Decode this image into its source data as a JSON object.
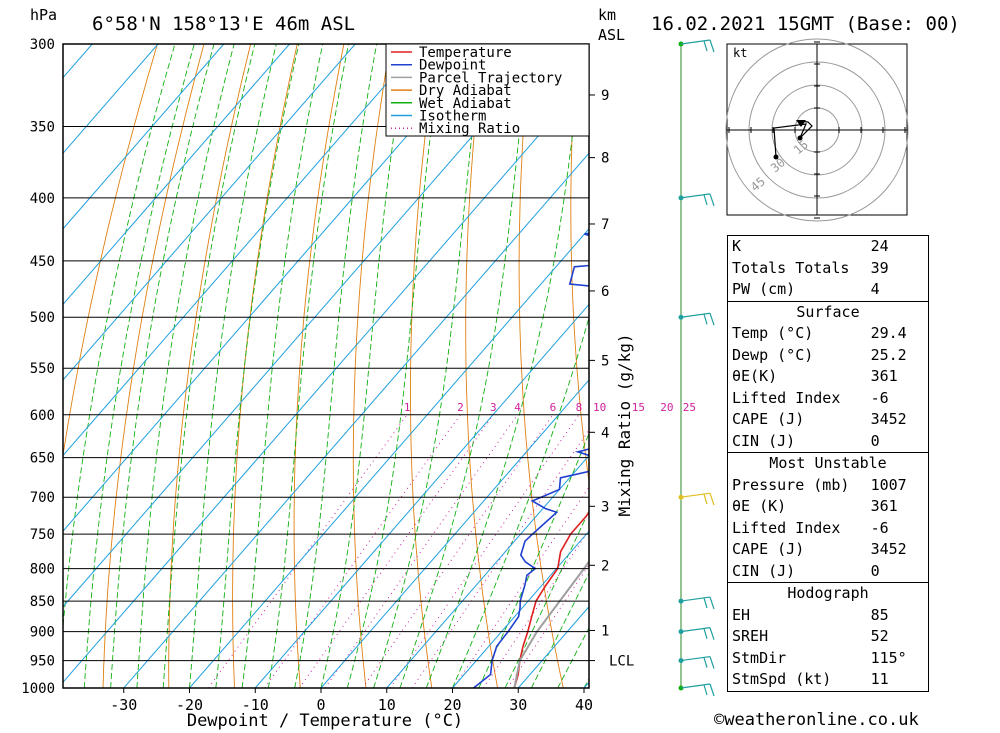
{
  "header": {
    "location": "6°58'N  158°13'E  46m  ASL",
    "datetime": "16.02.2021  15GMT  (Base: 00)",
    "left_unit": "hPa",
    "right_unit_top": "km",
    "right_unit_bottom": "ASL"
  },
  "chart_data": {
    "type": "line",
    "title": "",
    "xlabel": "Dewpoint / Temperature (°C)",
    "ylabel": "hPa",
    "y2label": "Mixing Ratio (g/kg)",
    "xlim": [
      -40,
      40
    ],
    "ylim": [
      1000,
      300
    ],
    "x_ticks": [
      "-30",
      "-20",
      "-10",
      "0",
      "10",
      "20",
      "30",
      "40"
    ],
    "pressure_levels": [
      300,
      350,
      400,
      450,
      500,
      550,
      600,
      650,
      700,
      750,
      800,
      850,
      900,
      950,
      1000
    ],
    "height_km": [
      {
        "label": "9",
        "p": 330
      },
      {
        "label": "8",
        "p": 371
      },
      {
        "label": "7",
        "p": 420
      },
      {
        "label": "6",
        "p": 476
      },
      {
        "label": "5",
        "p": 542
      },
      {
        "label": "4",
        "p": 620
      },
      {
        "label": "3",
        "p": 712
      },
      {
        "label": "2",
        "p": 795
      },
      {
        "label": "1",
        "p": 898
      },
      {
        "label": "LCL",
        "p": 950
      }
    ],
    "mixing_ratio_labels": [
      "1",
      "2",
      "3",
      "4",
      "6",
      "8",
      "10",
      "15",
      "20",
      "25"
    ],
    "legend": {
      "placement": "top-right",
      "items": [
        {
          "name": "Temperature",
          "color": "#e02020",
          "style": "solid"
        },
        {
          "name": "Dewpoint",
          "color": "#2040d0",
          "style": "solid"
        },
        {
          "name": "Parcel Trajectory",
          "color": "#a0a0a0",
          "style": "solid"
        },
        {
          "name": "Dry Adiabat",
          "color": "#e08010",
          "style": "solid"
        },
        {
          "name": "Wet Adiabat",
          "color": "#10b010",
          "style": "solid"
        },
        {
          "name": "Isotherm",
          "color": "#20a0e0",
          "style": "solid"
        },
        {
          "name": "Mixing Ratio",
          "color": "#d020a0",
          "style": "dotted"
        }
      ]
    },
    "series": [
      {
        "name": "Temperature",
        "points": [
          [
            29.4,
            1000
          ],
          [
            28.2,
            975
          ],
          [
            26.6,
            950
          ],
          [
            25.2,
            925
          ],
          [
            24.0,
            900
          ],
          [
            22.6,
            875
          ],
          [
            21.2,
            850
          ],
          [
            20.6,
            825
          ],
          [
            20.2,
            800
          ],
          [
            18.4,
            775
          ],
          [
            17.6,
            750
          ],
          [
            17.6,
            725
          ],
          [
            17.0,
            700
          ],
          [
            16.8,
            675
          ],
          [
            17.8,
            660
          ],
          [
            19.6,
            630
          ],
          [
            18.0,
            620
          ],
          [
            17.2,
            600
          ],
          [
            19.4,
            580
          ],
          [
            19.6,
            560
          ],
          [
            19.8,
            540
          ],
          [
            18.6,
            520
          ],
          [
            16.2,
            500
          ],
          [
            15.6,
            480
          ],
          [
            16.8,
            460
          ],
          [
            16.6,
            440
          ],
          [
            16.2,
            420
          ],
          [
            15.4,
            400
          ],
          [
            13.2,
            380
          ],
          [
            11.6,
            365
          ],
          [
            9.8,
            350
          ],
          [
            8.8,
            330
          ],
          [
            9.4,
            310
          ],
          [
            9.0,
            300
          ]
        ]
      },
      {
        "name": "Dewpoint",
        "points": [
          [
            23.2,
            1000
          ],
          [
            24.0,
            975
          ],
          [
            22.4,
            950
          ],
          [
            21.2,
            925
          ],
          [
            21.0,
            900
          ],
          [
            20.6,
            875
          ],
          [
            19.6,
            860
          ],
          [
            18.8,
            850
          ],
          [
            17.4,
            825
          ],
          [
            16.4,
            810
          ],
          [
            16.8,
            800
          ],
          [
            14.4,
            790
          ],
          [
            12.8,
            780
          ],
          [
            11.6,
            760
          ],
          [
            11.8,
            750
          ],
          [
            12.6,
            720
          ],
          [
            10.4,
            715
          ],
          [
            7.4,
            705
          ],
          [
            10.0,
            690
          ],
          [
            8.6,
            675
          ],
          [
            13.0,
            665
          ],
          [
            13.8,
            655
          ],
          [
            7.8,
            643
          ],
          [
            15.2,
            625
          ],
          [
            11.8,
            605
          ],
          [
            10.2,
            595
          ],
          [
            9.2,
            575
          ],
          [
            7.2,
            560
          ],
          [
            3.2,
            540
          ],
          [
            3.4,
            525
          ],
          [
            2.0,
            518
          ],
          [
            5.6,
            505
          ],
          [
            4.0,
            495
          ],
          [
            6.2,
            488
          ],
          [
            4.2,
            480
          ],
          [
            -15.6,
            470
          ],
          [
            -17.2,
            455
          ],
          [
            -4.2,
            448
          ],
          [
            -20.0,
            428
          ],
          [
            -7.6,
            415
          ],
          [
            -11.0,
            400
          ],
          [
            -19.2,
            378
          ],
          [
            -7.6,
            360
          ],
          [
            -11.0,
            345
          ],
          [
            -9.6,
            330
          ],
          [
            -8.0,
            310
          ],
          [
            -9.2,
            303
          ],
          [
            -8.6,
            300
          ]
        ]
      },
      {
        "name": "Parcel Trajectory",
        "points": [
          [
            29.4,
            1000
          ],
          [
            26.6,
            950
          ],
          [
            25.4,
            900
          ],
          [
            24.8,
            850
          ],
          [
            24.2,
            800
          ],
          [
            23.4,
            750
          ],
          [
            22.4,
            700
          ],
          [
            21.4,
            650
          ],
          [
            20.2,
            600
          ],
          [
            18.6,
            550
          ],
          [
            16.4,
            500
          ],
          [
            13.6,
            450
          ],
          [
            10.0,
            400
          ],
          [
            5.6,
            350
          ],
          [
            0.0,
            300
          ]
        ]
      }
    ],
    "wind_barbs_p": [
      1000,
      950,
      900,
      850,
      700,
      500,
      400,
      300
    ],
    "hodograph": {
      "unit": "kt",
      "ring_labels": [
        "15",
        "30",
        "45"
      ]
    }
  },
  "stats": {
    "block1": [
      {
        "k": "K",
        "v": "24"
      },
      {
        "k": "Totals Totals",
        "v": "39"
      },
      {
        "k": "PW (cm)",
        "v": "4"
      }
    ],
    "surface_title": "Surface",
    "surface": [
      {
        "k": "Temp (°C)",
        "v": "29.4"
      },
      {
        "k": "Dewp (°C)",
        "v": "25.2"
      },
      {
        "k": "θE(K)",
        "v": "361"
      },
      {
        "k": "Lifted Index",
        "v": "-6"
      },
      {
        "k": "CAPE (J)",
        "v": "3452"
      },
      {
        "k": "CIN (J)",
        "v": "0"
      }
    ],
    "mu_title": "Most Unstable",
    "mu": [
      {
        "k": "Pressure (mb)",
        "v": "1007"
      },
      {
        "k": "θE (K)",
        "v": "361"
      },
      {
        "k": "Lifted Index",
        "v": "-6"
      },
      {
        "k": "CAPE (J)",
        "v": "3452"
      },
      {
        "k": "CIN (J)",
        "v": "0"
      }
    ],
    "hodo_title": "Hodograph",
    "hodo": [
      {
        "k": "EH",
        "v": "85"
      },
      {
        "k": "SREH",
        "v": "52"
      },
      {
        "k": "StmDir",
        "v": "115°"
      },
      {
        "k": "StmSpd (kt)",
        "v": "11"
      }
    ]
  },
  "footer": {
    "credit": "©weatheronline.co.uk"
  }
}
